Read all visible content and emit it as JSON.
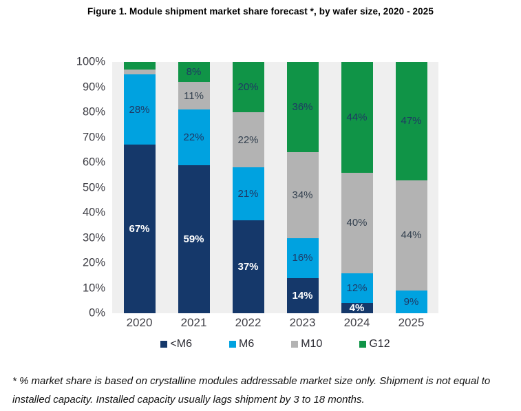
{
  "figure": {
    "title": "Figure 1. Module shipment market share forecast *, by wafer size, 2020 - 2025",
    "footnote": "* % market share is based on crystalline modules addressable market size only. Shipment is not equal to installed capacity. Installed capacity usually lags shipment by 3 to 18 months."
  },
  "chart_data": {
    "type": "bar",
    "stacked": true,
    "title": "Figure 1. Module shipment market share forecast *, by wafer size, 2020 - 2025",
    "categories": [
      "2020",
      "2021",
      "2022",
      "2023",
      "2024",
      "2025"
    ],
    "series": [
      {
        "name": "<M6",
        "color": "#15386A",
        "label_color": "#FFFFFF",
        "label_bold": true,
        "values": [
          67,
          59,
          37,
          14,
          4,
          0
        ],
        "labels": [
          "67%",
          "59%",
          "37%",
          "14%",
          "4%",
          ""
        ]
      },
      {
        "name": "M6",
        "color": "#00A2E0",
        "label_color": "#1F3864",
        "label_bold": false,
        "values": [
          28,
          22,
          21,
          16,
          12,
          9
        ],
        "labels": [
          "28%",
          "22%",
          "21%",
          "16%",
          "12%",
          "9%"
        ]
      },
      {
        "name": "M10",
        "color": "#B3B3B3",
        "label_color": "#33404F",
        "label_bold": false,
        "values": [
          2,
          11,
          22,
          34,
          40,
          44
        ],
        "labels": [
          "",
          "11%",
          "22%",
          "34%",
          "40%",
          "44%"
        ]
      },
      {
        "name": "G12",
        "color": "#109447",
        "label_color": "#1F3864",
        "label_bold": false,
        "values": [
          3,
          8,
          20,
          36,
          44,
          47
        ],
        "labels": [
          "",
          "8%",
          "20%",
          "36%",
          "44%",
          "47%"
        ]
      }
    ],
    "xlabel": "",
    "ylabel": "",
    "ylim": [
      0,
      100
    ],
    "yticks": [
      "100%",
      "90%",
      "80%",
      "70%",
      "60%",
      "50%",
      "40%",
      "30%",
      "20%",
      "10%",
      "0%"
    ],
    "grid": false,
    "plot_background": "#EFEFEF",
    "legend_position": "bottom"
  }
}
